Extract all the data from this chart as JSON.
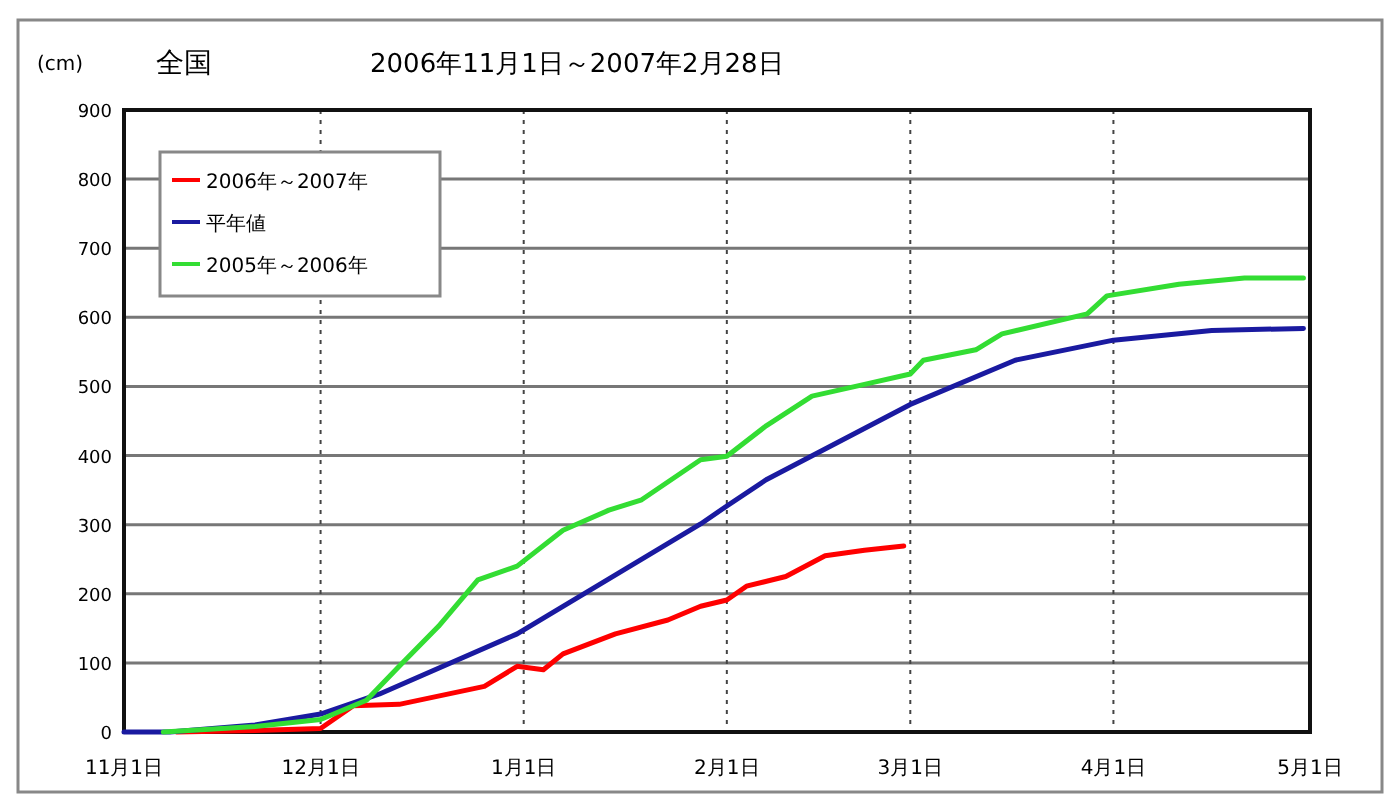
{
  "chart_data": {
    "type": "line",
    "title": "全国",
    "subtitle": "2006年11月1日～2007年2月28日",
    "ylabel": "(cm)",
    "xlim": [
      "2006-11-01",
      "2007-05-01"
    ],
    "xticks": [
      {
        "value": "2006-11-01",
        "label": "11月1日"
      },
      {
        "value": "2006-12-01",
        "label": "12月1日"
      },
      {
        "value": "2007-01-01",
        "label": "1月1日"
      },
      {
        "value": "2007-02-01",
        "label": "2月1日"
      },
      {
        "value": "2007-03-01",
        "label": "3月1日"
      },
      {
        "value": "2007-04-01",
        "label": "4月1日"
      },
      {
        "value": "2007-05-01",
        "label": "5月1日"
      }
    ],
    "ylim": [
      0,
      900
    ],
    "yticks": [
      0,
      100,
      200,
      300,
      400,
      500,
      600,
      700,
      800,
      900
    ],
    "grid": true,
    "legend": "top left",
    "marker": "none",
    "line_style": "solid",
    "series": [
      {
        "name": "2006年～2007年",
        "color": "#ff0000",
        "x": [
          "2006-11-09",
          "2006-11-21",
          "2006-12-01",
          "2006-12-06",
          "2006-12-13",
          "2006-12-26",
          "2006-12-31",
          "2007-01-04",
          "2007-01-07",
          "2007-01-15",
          "2007-01-23",
          "2007-01-28",
          "2007-02-01",
          "2007-02-04",
          "2007-02-10",
          "2007-02-16",
          "2007-02-22",
          "2007-02-28"
        ],
        "values": [
          0,
          2,
          5,
          38,
          40,
          66,
          95,
          90,
          113,
          142,
          162,
          182,
          191,
          211,
          225,
          255,
          263,
          269
        ]
      },
      {
        "name": "平年値",
        "color": "#1a1aa0",
        "x": [
          "2006-11-01",
          "2006-11-08",
          "2006-11-21",
          "2006-12-01",
          "2006-12-10",
          "2006-12-31",
          "2007-01-28",
          "2007-02-01",
          "2007-02-07",
          "2007-03-01",
          "2007-03-17",
          "2007-04-01",
          "2007-04-16",
          "2007-04-30"
        ],
        "values": [
          0,
          0,
          10,
          26,
          55,
          142,
          301,
          327,
          365,
          474,
          538,
          567,
          581,
          584
        ]
      },
      {
        "name": "2005年～2006年",
        "color": "#33dd33",
        "x": [
          "2006-11-07",
          "2006-11-21",
          "2006-12-01",
          "2006-12-08",
          "2006-12-13",
          "2006-12-19",
          "2006-12-25",
          "2006-12-31",
          "2007-01-07",
          "2007-01-14",
          "2007-01-19",
          "2007-01-28",
          "2007-02-01",
          "2007-02-07",
          "2007-02-14",
          "2007-02-22",
          "2007-03-01",
          "2007-03-03",
          "2007-03-11",
          "2007-03-15",
          "2007-03-28",
          "2007-03-31",
          "2007-04-11",
          "2007-04-21",
          "2007-04-30"
        ],
        "values": [
          0,
          8,
          18,
          46,
          95,
          153,
          220,
          240,
          292,
          321,
          336,
          394,
          399,
          443,
          486,
          503,
          518,
          538,
          553,
          576,
          605,
          631,
          648,
          657,
          657
        ]
      }
    ]
  }
}
